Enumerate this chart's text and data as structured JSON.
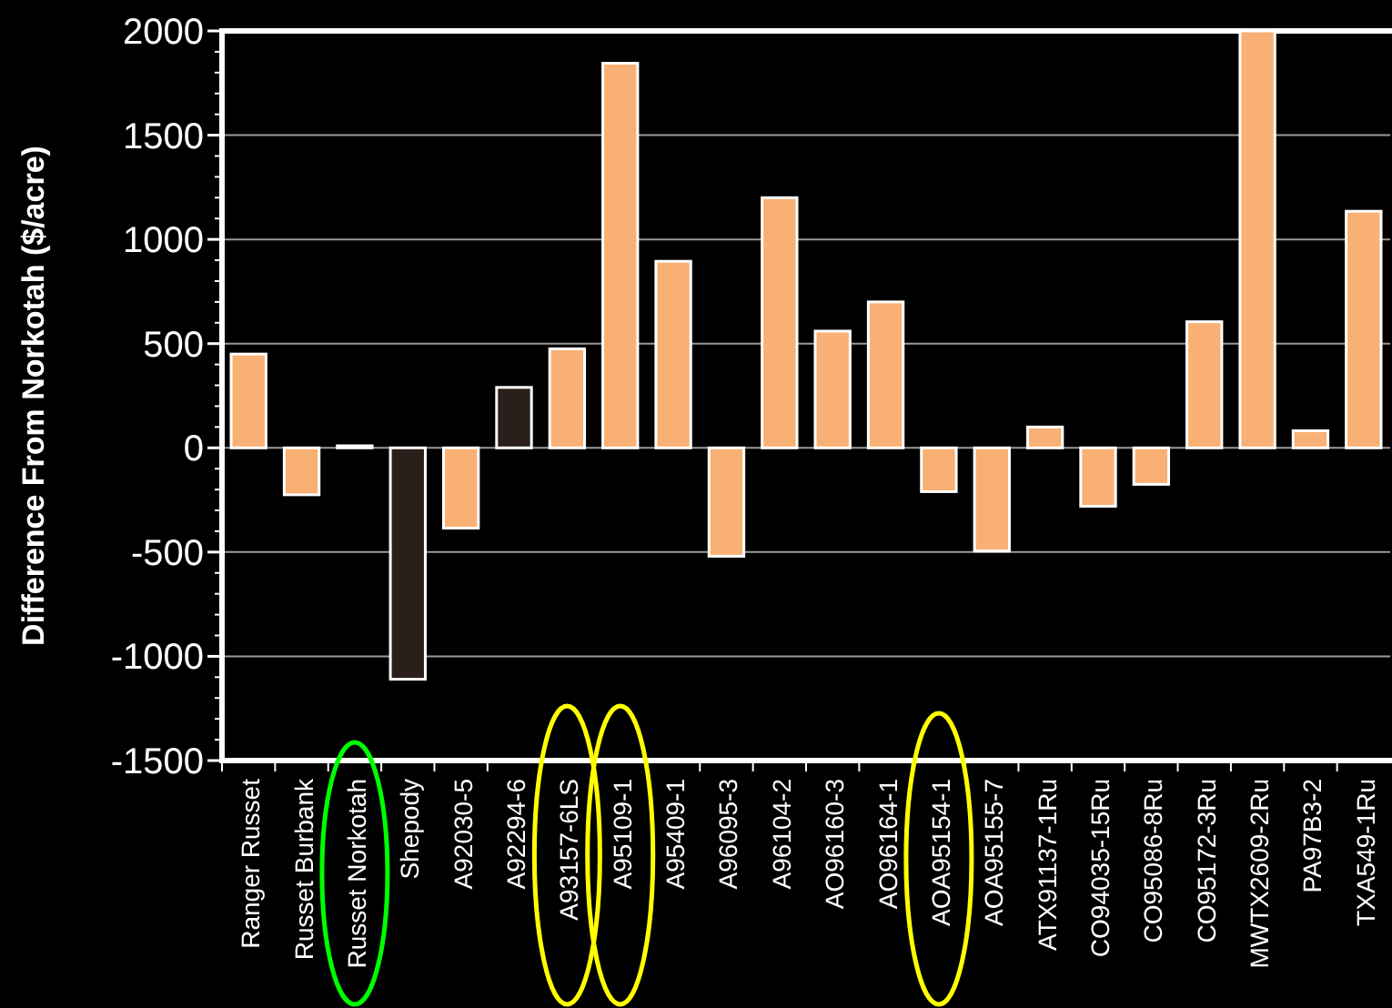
{
  "chart_data": {
    "type": "bar",
    "ylabel": "Difference From Norkotah ($/acre)",
    "categories": [
      "Ranger Russet",
      "Russet Burbank",
      "Russet Norkotah",
      "Shepody",
      "A92030-5",
      "A92294-6",
      "A93157-6LS",
      "A95109-1",
      "A95409-1",
      "A96095-3",
      "A96104-2",
      "AO96160-3",
      "AO96164-1",
      "AOA95154-1",
      "AOA95155-7",
      "ATX91137-1Ru",
      "CO94035-15Ru",
      "CO95086-8Ru",
      "CO95172-3Ru",
      "MWTX2609-2Ru",
      "PA97B3-2",
      "TXA549-1Ru"
    ],
    "values": [
      450,
      -225,
      10,
      -1110,
      -385,
      290,
      475,
      1845,
      895,
      -520,
      1200,
      560,
      700,
      -210,
      -495,
      100,
      -280,
      -175,
      605,
      2000,
      82,
      1135
    ],
    "colors": [
      "#f9b074",
      "#f9b074",
      "#f9b074",
      "#2a1f1a",
      "#f9b074",
      "#2a1f1a",
      "#f9b074",
      "#f9b074",
      "#f9b074",
      "#f9b074",
      "#f9b074",
      "#f9b074",
      "#f9b074",
      "#f9b074",
      "#f9b074",
      "#f9b074",
      "#f9b074",
      "#f9b074",
      "#f9b074",
      "#f9b074",
      "#f9b074",
      "#f9b074"
    ],
    "ylim": [
      -1500,
      2000
    ],
    "yticks": [
      -1500,
      -1000,
      -500,
      0,
      500,
      1000,
      1500,
      2000
    ],
    "grid": "y"
  }
}
